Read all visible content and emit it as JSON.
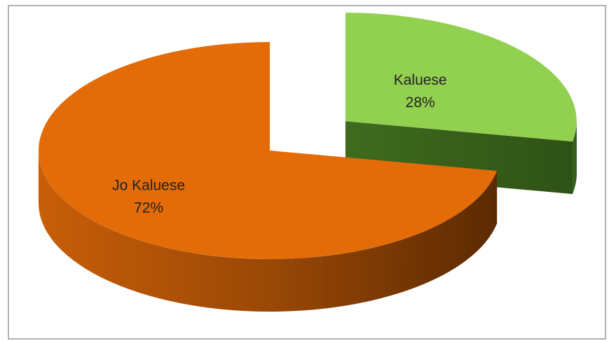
{
  "chart_data": {
    "type": "pie",
    "categories": [
      "Kaluese",
      "Jo Kaluese"
    ],
    "values": [
      28,
      72
    ],
    "value_labels": [
      "28%",
      "72%"
    ],
    "colors": [
      "#92d050",
      "#e36c09"
    ],
    "explode": [
      true,
      false
    ]
  }
}
